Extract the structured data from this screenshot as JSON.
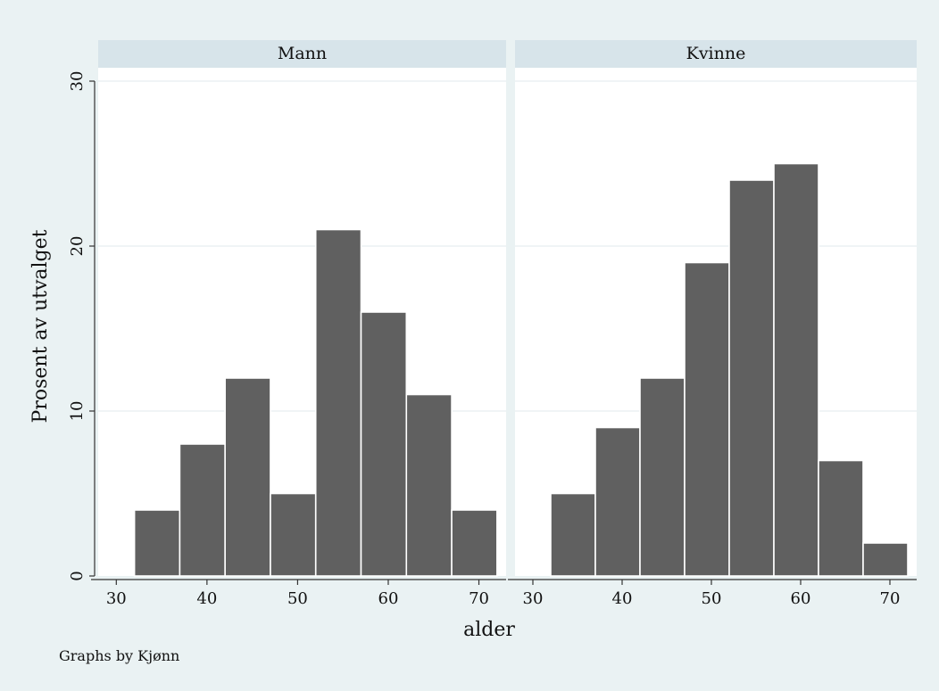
{
  "chart_data": {
    "type": "bar",
    "ylabel": "Prosent av utvalget",
    "xlabel": "alder",
    "note": "Graphs by Kjønn",
    "ylim": [
      0,
      30
    ],
    "yticks": [
      0,
      10,
      20,
      30
    ],
    "xlim": [
      28,
      73
    ],
    "xticks": [
      30,
      40,
      50,
      60,
      70
    ],
    "bin_width": 5,
    "bar_color": "#606060",
    "panels": [
      {
        "name": "Mann",
        "bins": [
          {
            "start": 32,
            "end": 37,
            "value": 4
          },
          {
            "start": 37,
            "end": 42,
            "value": 8
          },
          {
            "start": 42,
            "end": 47,
            "value": 12
          },
          {
            "start": 47,
            "end": 52,
            "value": 5
          },
          {
            "start": 52,
            "end": 57,
            "value": 21
          },
          {
            "start": 57,
            "end": 62,
            "value": 16
          },
          {
            "start": 62,
            "end": 67,
            "value": 11
          },
          {
            "start": 67,
            "end": 72,
            "value": 4
          }
        ]
      },
      {
        "name": "Kvinne",
        "bins": [
          {
            "start": 32,
            "end": 37,
            "value": 5
          },
          {
            "start": 37,
            "end": 42,
            "value": 9
          },
          {
            "start": 42,
            "end": 47,
            "value": 12
          },
          {
            "start": 47,
            "end": 52,
            "value": 19
          },
          {
            "start": 52,
            "end": 57,
            "value": 24
          },
          {
            "start": 57,
            "end": 62,
            "value": 25
          },
          {
            "start": 62,
            "end": 67,
            "value": 7
          },
          {
            "start": 67,
            "end": 72,
            "value": 2
          }
        ]
      }
    ]
  }
}
